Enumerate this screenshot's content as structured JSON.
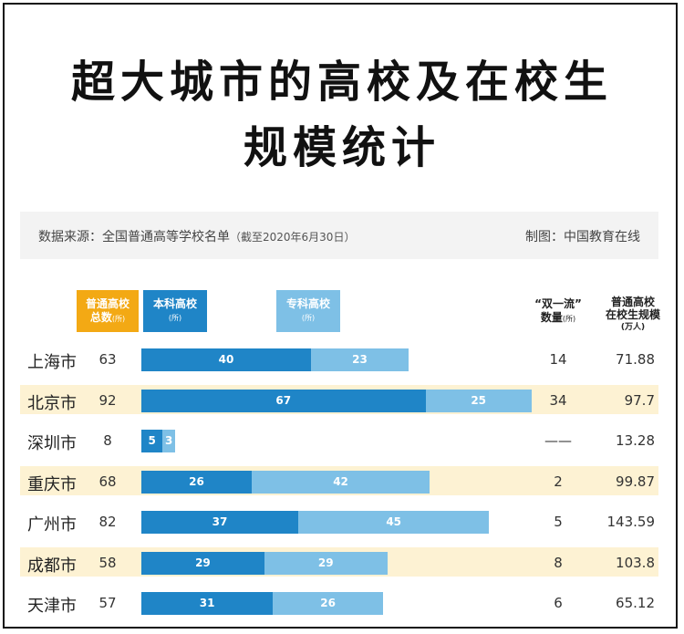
{
  "title_line1": "超大城市的高校及在校生",
  "title_line2": "规模统计",
  "source": "数据来源：全国普通高等学校名单",
  "source_date": "（截至2020年6月30日）",
  "producer": "制图：中国教育在线",
  "headers": {
    "total": "普通高校",
    "total2": "总数",
    "total_unit": "(所)",
    "benke": "本科高校",
    "benke_unit": "(所)",
    "zhuanke": "专科高校",
    "zhuanke_unit": "(所)",
    "shuangyiliu": "“双一流”",
    "shuangyiliu2": "数量",
    "shuangyiliu_unit": "(所)",
    "scale1": "普通高校",
    "scale2": "在校生规模",
    "scale_unit": "(万人)"
  },
  "colors": {
    "total": "#f3a914",
    "benke": "#1f85c7",
    "zhuanke": "#7ec0e6",
    "highlight": "#fdf2d3"
  },
  "chart_data": {
    "type": "bar",
    "stacked": true,
    "categories": [
      "上海市",
      "北京市",
      "深圳市",
      "重庆市",
      "广州市",
      "成都市",
      "天津市"
    ],
    "series": [
      {
        "name": "本科高校",
        "values": [
          40,
          67,
          5,
          26,
          37,
          29,
          31
        ]
      },
      {
        "name": "专科高校",
        "values": [
          23,
          25,
          3,
          42,
          45,
          29,
          26
        ]
      }
    ],
    "totals": [
      "63",
      "92",
      "8",
      "68",
      "82",
      "58",
      "57"
    ],
    "shuangyiliu": [
      "14",
      "34",
      "——",
      "2",
      "5",
      "8",
      "6"
    ],
    "scale": [
      "71.88",
      "97.7",
      "13.28",
      "99.87",
      "143.59",
      "103.8",
      "65.12"
    ],
    "highlighted_rows": [
      1,
      3,
      5
    ]
  }
}
